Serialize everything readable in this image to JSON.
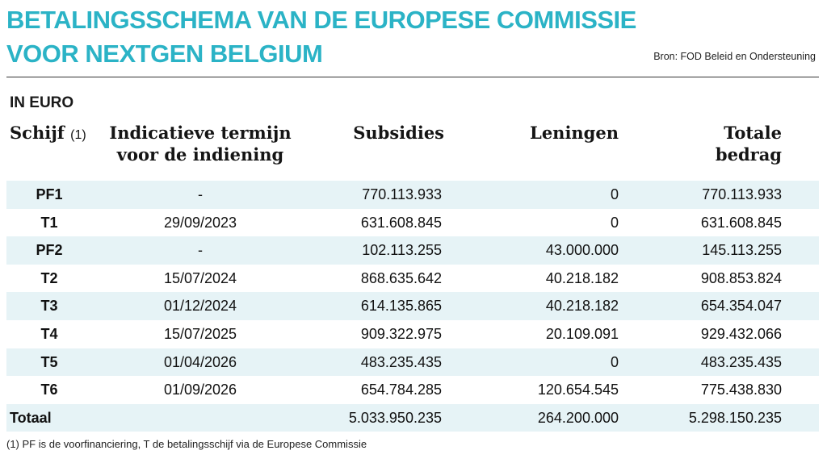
{
  "title_line1": "BETALINGSSCHEMA VAN DE EUROPESE COMMISSIE",
  "title_line2": "VOOR NEXTGEN BELGIUM",
  "source": "Bron: FOD Beleid en Ondersteuning",
  "unit_label": "IN EURO",
  "accent_color": "#2bb3c6",
  "row_shade_color": "#e6f3f6",
  "headers": {
    "schijf": "Schijf",
    "schijf_note": "(1)",
    "termijn_line1": "Indicatieve termijn",
    "termijn_line2": "voor de indiening",
    "subsidies": "Subsidies",
    "leningen": "Leningen",
    "totaal_line1": "Totale",
    "totaal_line2": "bedrag"
  },
  "rows": [
    {
      "schijf": "PF1",
      "termijn": "-",
      "subsidies": "770.113.933",
      "leningen": "0",
      "totaal": "770.113.933"
    },
    {
      "schijf": "T1",
      "termijn": "29/09/2023",
      "subsidies": "631.608.845",
      "leningen": "0",
      "totaal": "631.608.845"
    },
    {
      "schijf": "PF2",
      "termijn": "-",
      "subsidies": "102.113.255",
      "leningen": "43.000.000",
      "totaal": "145.113.255"
    },
    {
      "schijf": "T2",
      "termijn": "15/07/2024",
      "subsidies": "868.635.642",
      "leningen": "40.218.182",
      "totaal": "908.853.824"
    },
    {
      "schijf": "T3",
      "termijn": "01/12/2024",
      "subsidies": "614.135.865",
      "leningen": "40.218.182",
      "totaal": "654.354.047"
    },
    {
      "schijf": "T4",
      "termijn": "15/07/2025",
      "subsidies": "909.322.975",
      "leningen": "20.109.091",
      "totaal": "929.432.066"
    },
    {
      "schijf": "T5",
      "termijn": "01/04/2026",
      "subsidies": "483.235.435",
      "leningen": "0",
      "totaal": "483.235.435"
    },
    {
      "schijf": "T6",
      "termijn": "01/09/2026",
      "subsidies": "654.784.285",
      "leningen": "120.654.545",
      "totaal": "775.438.830"
    }
  ],
  "total_row": {
    "label": "Totaal",
    "subsidies": "5.033.950.235",
    "leningen": "264.200.000",
    "totaal": "5.298.150.235"
  },
  "footnote": "(1) PF is de voorfinanciering, T de betalingsschijf via de Europese Commissie",
  "chart_data": {
    "type": "table",
    "title": "BETALINGSSCHEMA VAN DE EUROPESE COMMISSIE VOOR NEXTGEN BELGIUM",
    "unit": "IN EURO",
    "columns": [
      "Schijf (1)",
      "Indicatieve termijn voor de indiening",
      "Subsidies",
      "Leningen",
      "Totale bedrag"
    ],
    "rows": [
      [
        "PF1",
        "-",
        770113933,
        0,
        770113933
      ],
      [
        "T1",
        "29/09/2023",
        631608845,
        0,
        631608845
      ],
      [
        "PF2",
        "-",
        102113255,
        43000000,
        145113255
      ],
      [
        "T2",
        "15/07/2024",
        868635642,
        40218182,
        908853824
      ],
      [
        "T3",
        "01/12/2024",
        614135865,
        40218182,
        654354047
      ],
      [
        "T4",
        "15/07/2025",
        909322975,
        20109091,
        929432066
      ],
      [
        "T5",
        "01/04/2026",
        483235435,
        0,
        483235435
      ],
      [
        "T6",
        "01/09/2026",
        654784285,
        120654545,
        775438830
      ],
      [
        "Totaal",
        "",
        5033950235,
        264200000,
        5298150235
      ]
    ]
  }
}
